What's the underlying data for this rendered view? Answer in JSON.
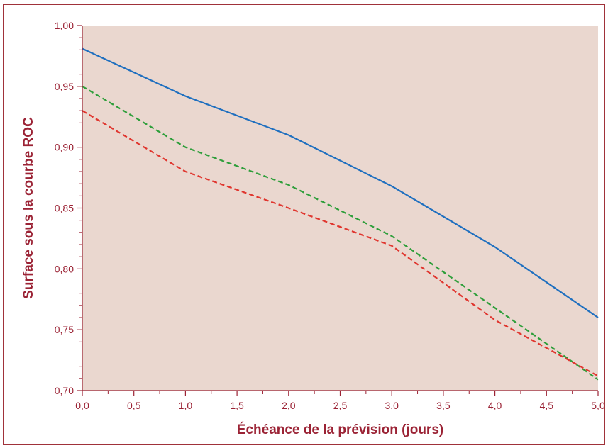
{
  "chart_data": {
    "type": "line",
    "title": "",
    "xlabel": "Échéance de la prévision (jours)",
    "ylabel": "Surface sous la courbe ROC",
    "xlim": [
      0,
      5
    ],
    "ylim": [
      0.7,
      1.0
    ],
    "x_ticks": [
      "0,0",
      "0,5",
      "1,0",
      "1,5",
      "2,0",
      "2,5",
      "3,0",
      "3,5",
      "4,0",
      "4,5",
      "5,0"
    ],
    "y_ticks": [
      "0,70",
      "0,75",
      "0,80",
      "0,85",
      "0,90",
      "0,95",
      "1,00"
    ],
    "grid": false,
    "legend": "none",
    "plot_background": "#ead7cf",
    "axis_color": "#9b2335",
    "series": [
      {
        "color": "#1f6fbf",
        "style": "solid",
        "x": [
          0,
          1,
          2,
          3,
          4,
          5
        ],
        "y": [
          0.981,
          0.942,
          0.91,
          0.868,
          0.818,
          0.76
        ]
      },
      {
        "color": "#2e9e3a",
        "style": "dashed",
        "x": [
          0,
          1,
          2,
          3,
          4,
          5
        ],
        "y": [
          0.95,
          0.9,
          0.869,
          0.827,
          0.768,
          0.709
        ]
      },
      {
        "color": "#e0362f",
        "style": "dashed",
        "x": [
          0,
          1,
          2,
          3,
          4,
          5
        ],
        "y": [
          0.93,
          0.88,
          0.85,
          0.819,
          0.758,
          0.712
        ]
      }
    ]
  }
}
